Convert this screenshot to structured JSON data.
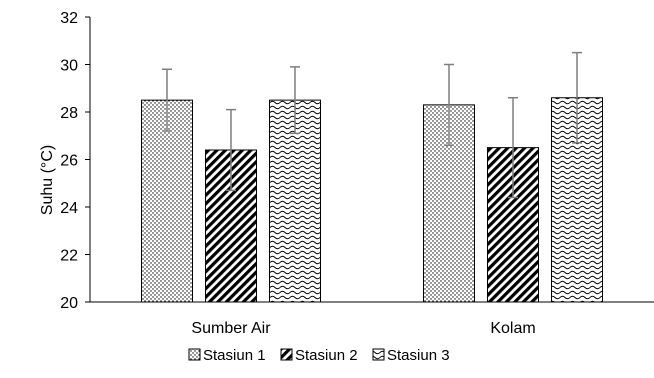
{
  "chart_data": {
    "type": "bar",
    "title": "",
    "xlabel": "",
    "ylabel": "Suhu (°C)",
    "ylim": [
      20,
      32
    ],
    "yticks": [
      20,
      22,
      24,
      26,
      28,
      30,
      32
    ],
    "categories": [
      "Sumber Air",
      "Kolam"
    ],
    "grid": false,
    "legend_position": "bottom",
    "series": [
      {
        "name": "Stasiun 1",
        "pattern": "dots",
        "values": [
          28.5,
          28.3
        ],
        "error": [
          1.3,
          1.7
        ]
      },
      {
        "name": "Stasiun 2",
        "pattern": "diagonal-stripes",
        "values": [
          26.4,
          26.5
        ],
        "error": [
          1.7,
          2.1
        ]
      },
      {
        "name": "Stasiun 3",
        "pattern": "waves",
        "values": [
          28.5,
          28.6
        ],
        "error": [
          1.4,
          1.9
        ]
      }
    ],
    "colors": {
      "bar_outline": "#000000",
      "pattern": "#000000",
      "error_bar": "#7f7f7f",
      "axis": "#000000"
    }
  }
}
